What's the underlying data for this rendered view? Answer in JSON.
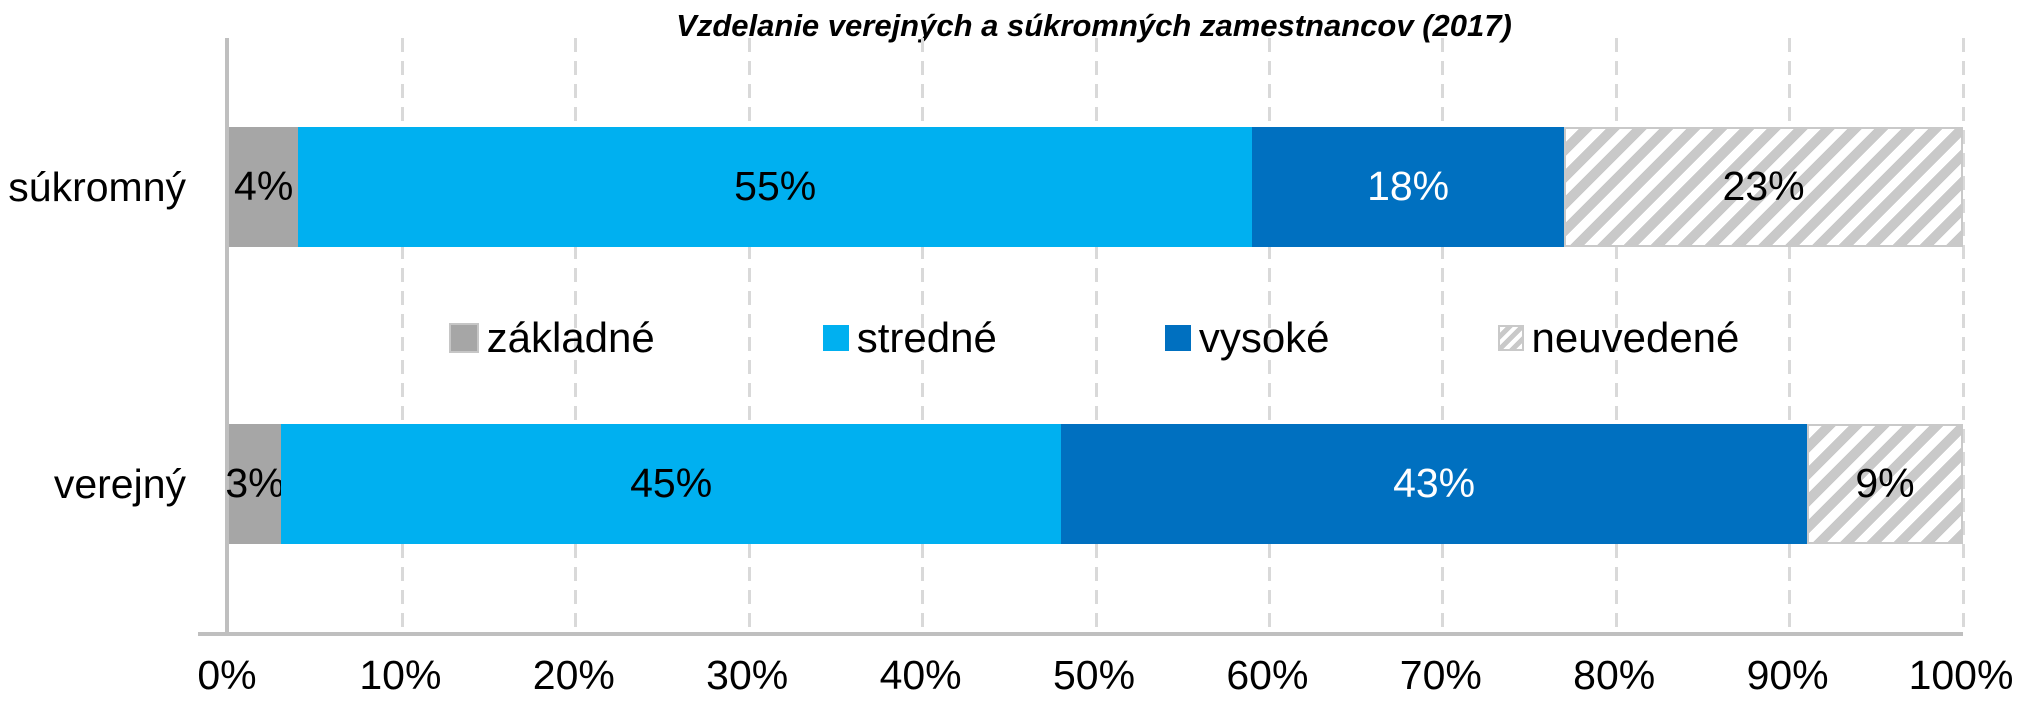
{
  "chart_data": {
    "type": "bar",
    "orientation": "horizontal",
    "stacked": true,
    "title": "Vzdelanie verejných a súkromných zamestnancov (2017)",
    "categories": [
      "súkromný",
      "verejný"
    ],
    "series": [
      {
        "name": "základné",
        "color": "#A6A6A6",
        "pattern": "solid",
        "label_color": "#000000",
        "values": [
          4,
          3
        ]
      },
      {
        "name": "stredné",
        "color": "#00B0F0",
        "pattern": "solid",
        "label_color": "#000000",
        "values": [
          55,
          45
        ]
      },
      {
        "name": "vysoké",
        "color": "#0070C0",
        "pattern": "solid",
        "label_color": "#FFFFFF",
        "values": [
          18,
          43
        ]
      },
      {
        "name": "neuvedené",
        "color": "#C9C9C9",
        "pattern": "diagonal-hatch",
        "label_color": "#000000",
        "values": [
          23,
          9
        ]
      }
    ],
    "value_suffix": "%",
    "x_ticks": [
      "0%",
      "10%",
      "20%",
      "30%",
      "40%",
      "50%",
      "60%",
      "70%",
      "80%",
      "90%",
      "100%"
    ],
    "xlim": [
      0,
      100
    ],
    "grid": "vertical-dashed",
    "legend_position": "center-overlay",
    "colors": {
      "gridline": "#D9D9D9",
      "axis": "#BFBFBF",
      "hatch_stripe": "#C9C9C9",
      "hatch_bg": "#FFFFFF"
    }
  }
}
